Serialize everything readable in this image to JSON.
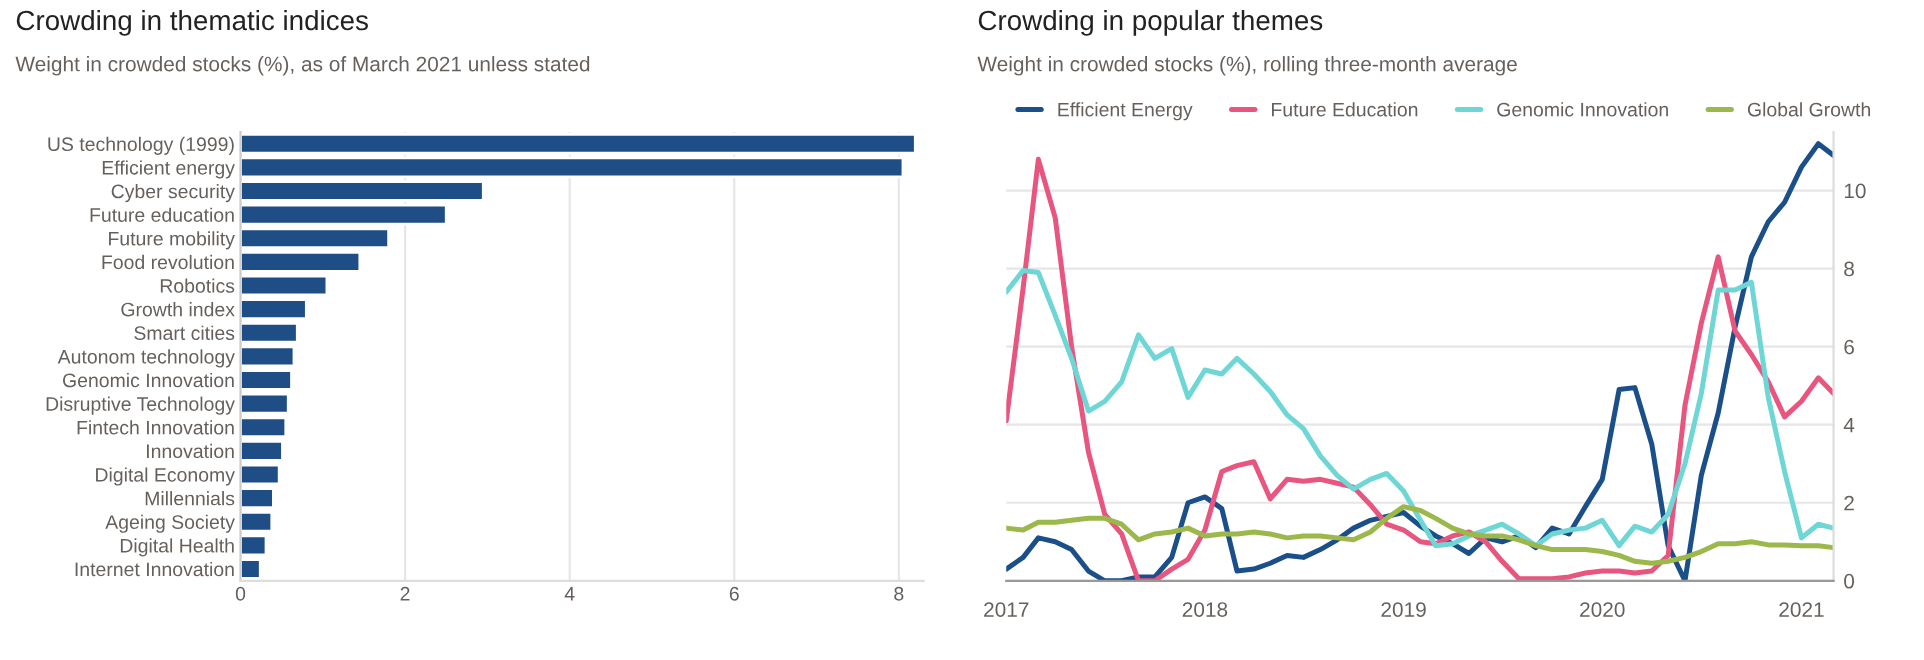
{
  "chart_data": [
    {
      "type": "bar",
      "orientation": "horizontal",
      "title": "Crowding in thematic indices",
      "subtitle": "Weight in crowded stocks (%), as of March 2021 unless stated",
      "categories": [
        "US technology (1999)",
        "Efficient energy",
        "Cyber security",
        "Future education",
        "Future mobility",
        "Food revolution",
        "Robotics",
        "Growth index",
        "Smart cities",
        "Autonom technology",
        "Genomic Innovation",
        "Disruptive Technology",
        "Fintech Innovation",
        "Innovation",
        "Digital Economy",
        "Millennials",
        "Ageing Society",
        "Digital Health",
        "Internet Innovation"
      ],
      "values": [
        8.2,
        8.05,
        2.95,
        2.5,
        1.8,
        1.45,
        1.05,
        0.8,
        0.69,
        0.65,
        0.62,
        0.58,
        0.55,
        0.51,
        0.47,
        0.4,
        0.38,
        0.31,
        0.24
      ],
      "color": "#1f4e87",
      "xlim": [
        0,
        8.3
      ],
      "xticks": [
        0,
        2,
        4,
        6,
        8
      ],
      "grid": "x"
    },
    {
      "type": "line",
      "title": "Crowding in popular themes",
      "subtitle": "Weight in crowded stocks (%), rolling three-month average",
      "x": [
        "2017-01",
        "2017-02",
        "2017-03",
        "2017-04",
        "2017-05",
        "2017-06",
        "2017-07",
        "2017-08",
        "2017-09",
        "2017-10",
        "2017-11",
        "2017-12",
        "2018-01",
        "2018-02",
        "2018-03",
        "2018-04",
        "2018-05",
        "2018-06",
        "2018-07",
        "2018-08",
        "2018-09",
        "2018-10",
        "2018-11",
        "2018-12",
        "2019-01",
        "2019-02",
        "2019-03",
        "2019-04",
        "2019-05",
        "2019-06",
        "2019-07",
        "2019-08",
        "2019-09",
        "2019-10",
        "2019-11",
        "2019-12",
        "2020-01",
        "2020-02",
        "2020-03",
        "2020-04",
        "2020-05",
        "2020-06",
        "2020-07",
        "2020-08",
        "2020-09",
        "2020-10",
        "2020-11",
        "2020-12",
        "2021-01",
        "2021-02",
        "2021-03"
      ],
      "series": [
        {
          "name": "Efficient Energy",
          "color": "#1b4f8a",
          "values": [
            0.3,
            0.6,
            1.1,
            1.0,
            0.8,
            0.25,
            0.0,
            0.0,
            0.1,
            0.1,
            0.6,
            2.0,
            2.15,
            1.85,
            0.25,
            0.3,
            0.45,
            0.65,
            0.6,
            0.8,
            1.05,
            1.35,
            1.55,
            1.65,
            1.75,
            1.4,
            1.15,
            0.95,
            0.7,
            1.1,
            1.0,
            1.15,
            0.85,
            1.35,
            1.2,
            1.9,
            2.6,
            4.9,
            4.95,
            3.5,
            0.9,
            0.0,
            2.7,
            4.3,
            6.5,
            8.3,
            9.2,
            9.7,
            10.6,
            11.2,
            10.9
          ]
        },
        {
          "name": "Future Education",
          "color": "#e8557f",
          "values": [
            4.1,
            7.5,
            10.8,
            9.3,
            6.0,
            3.3,
            1.7,
            1.2,
            0.0,
            0.0,
            0.3,
            0.55,
            1.3,
            2.8,
            2.95,
            3.05,
            2.1,
            2.6,
            2.55,
            2.6,
            2.5,
            2.4,
            1.95,
            1.45,
            1.3,
            1.0,
            0.95,
            1.15,
            1.25,
            1.0,
            0.5,
            0.05,
            0.05,
            0.05,
            0.1,
            0.2,
            0.25,
            0.25,
            0.2,
            0.25,
            0.65,
            4.5,
            6.6,
            8.3,
            6.4,
            5.8,
            5.1,
            4.2,
            4.6,
            5.2,
            4.8
          ]
        },
        {
          "name": "Genomic Innovation",
          "color": "#6fd6d6",
          "values": [
            7.4,
            7.95,
            7.9,
            6.8,
            5.7,
            4.35,
            4.6,
            5.1,
            6.3,
            5.7,
            5.95,
            4.7,
            5.4,
            5.3,
            5.7,
            5.3,
            4.85,
            4.25,
            3.9,
            3.2,
            2.7,
            2.35,
            2.6,
            2.75,
            2.3,
            1.55,
            0.9,
            0.95,
            1.15,
            1.3,
            1.45,
            1.2,
            0.9,
            1.2,
            1.3,
            1.35,
            1.55,
            0.9,
            1.4,
            1.25,
            1.7,
            3.0,
            4.8,
            7.45,
            7.45,
            7.65,
            4.7,
            2.8,
            1.1,
            1.45,
            1.35
          ]
        },
        {
          "name": "Global Growth",
          "color": "#9cb84a",
          "values": [
            1.35,
            1.3,
            1.5,
            1.5,
            1.55,
            1.6,
            1.6,
            1.45,
            1.05,
            1.2,
            1.25,
            1.35,
            1.15,
            1.2,
            1.2,
            1.25,
            1.2,
            1.1,
            1.15,
            1.15,
            1.1,
            1.05,
            1.25,
            1.6,
            1.9,
            1.8,
            1.6,
            1.35,
            1.2,
            1.15,
            1.15,
            1.05,
            0.9,
            0.8,
            0.8,
            0.8,
            0.75,
            0.65,
            0.5,
            0.45,
            0.5,
            0.6,
            0.75,
            0.95,
            0.95,
            1.0,
            0.92,
            0.92,
            0.9,
            0.9,
            0.85
          ]
        }
      ],
      "xlim": [
        "2017-01",
        "2021-03"
      ],
      "xticks": [
        {
          "value": "2017-01",
          "label": "2017"
        },
        {
          "value": "2018-01",
          "label": "2018"
        },
        {
          "value": "2019-01",
          "label": "2019"
        },
        {
          "value": "2020-01",
          "label": "2020"
        },
        {
          "value": "2021-01",
          "label": "2021"
        }
      ],
      "ylim": [
        0,
        11.5
      ],
      "yticks": [
        0,
        2,
        4,
        6,
        8,
        10
      ],
      "grid": "y",
      "legend": "top"
    }
  ]
}
